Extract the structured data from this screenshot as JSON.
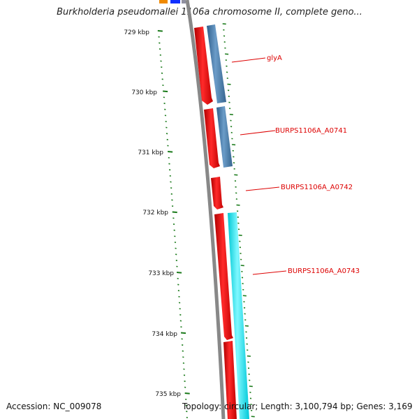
{
  "title": "Burkholderia pseudomallei 1106a chromosome II, complete geno...",
  "accession": "Accession: NC_009078",
  "summary": "Topology: circular; Length: 3,100,794 bp; Genes: 3,169",
  "scale_labels": [
    "729 kbp",
    "730 kbp",
    "731 kbp",
    "732 kbp",
    "733 kbp",
    "734 kbp",
    "735 kbp"
  ],
  "genes": [
    {
      "name": "glyA"
    },
    {
      "name": "BURPS1106A_A0741"
    },
    {
      "name": "BURPS1106A_A0742"
    },
    {
      "name": "BURPS1106A_A0743"
    }
  ],
  "colors": {
    "cds": "#ff1010",
    "blue_feature": "#4a7fb0",
    "cyan_feature": "#00e8f0",
    "backbone": "#888888",
    "tick": "#1a7a1a",
    "label": "#dd0000"
  }
}
